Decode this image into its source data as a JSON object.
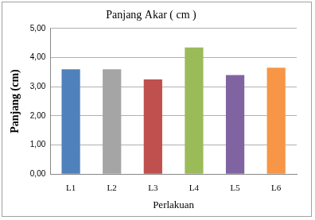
{
  "chart_data": {
    "type": "bar",
    "title": "Panjang Akar ( cm )",
    "x_label": "Perlakuan",
    "y_label": "Panjang (cm)",
    "categories": [
      "L1",
      "L2",
      "L3",
      "L4",
      "L5",
      "L6"
    ],
    "values": [
      3.6,
      3.6,
      3.25,
      4.35,
      3.4,
      3.65
    ],
    "colors": [
      "#4f81bd",
      "#a5a5a5",
      "#c0504d",
      "#9bbb59",
      "#8064a2",
      "#f79646"
    ],
    "ylim": [
      0,
      5
    ],
    "yticks": [
      {
        "value": 0,
        "label": "0,00"
      },
      {
        "value": 1,
        "label": "1,00"
      },
      {
        "value": 2,
        "label": "2,00"
      },
      {
        "value": 3,
        "label": "3,00"
      },
      {
        "value": 4,
        "label": "4,00"
      },
      {
        "value": 5,
        "label": "5,00"
      }
    ],
    "grid": true
  }
}
